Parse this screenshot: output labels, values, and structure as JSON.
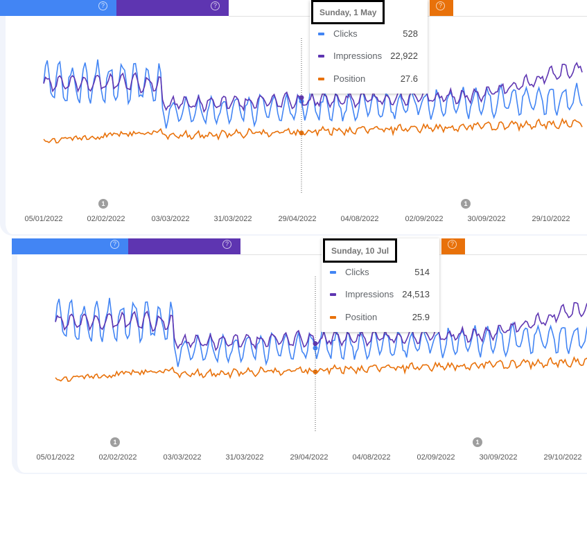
{
  "colors": {
    "clicks": "#4285f4",
    "impressions": "#5e35b1",
    "position": "#e8710a",
    "position_bg": "#fdf3ea"
  },
  "x_axis_labels": [
    "05/01/2022",
    "02/02/2022",
    "03/03/2022",
    "31/03/2022",
    "29/04/2022",
    "04/08/2022",
    "02/09/2022",
    "30/09/2022",
    "29/10/2022"
  ],
  "annotations": [
    "1",
    "1"
  ],
  "help_icon": "?",
  "panels": [
    {
      "tooltip": {
        "date": "Sunday, 1 May",
        "rows": [
          {
            "label": "Clicks",
            "value": "528"
          },
          {
            "label": "Impressions",
            "value": "22,922"
          },
          {
            "label": "Position",
            "value": "27.6"
          }
        ]
      }
    },
    {
      "tooltip": {
        "date": "Sunday, 10 Jul",
        "rows": [
          {
            "label": "Clicks",
            "value": "514"
          },
          {
            "label": "Impressions",
            "value": "24,513"
          },
          {
            "label": "Position",
            "value": "25.9"
          }
        ]
      }
    }
  ]
}
